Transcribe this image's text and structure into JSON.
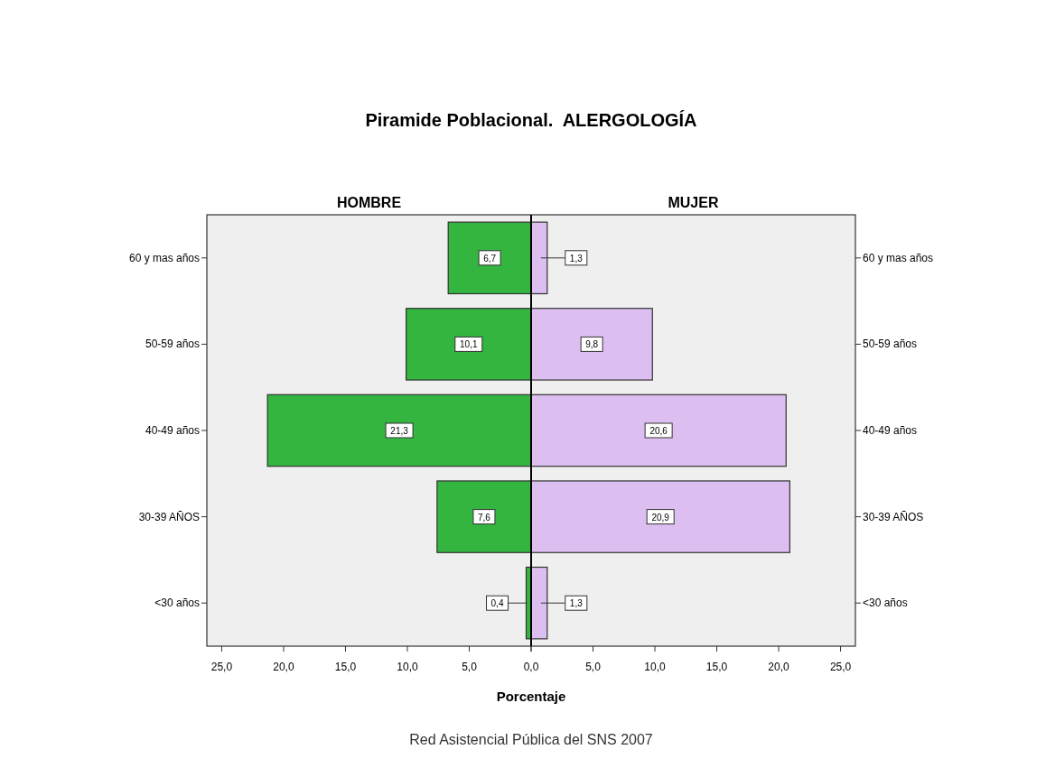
{
  "chart_data": [
    {
      "type": "bar",
      "orientation": "horizontal",
      "title": "Piramide Poblacional.  ALERGOLOGÍA",
      "subtitle": "HOMBRE",
      "xlabel": "Porcentaje",
      "annotations": [
        "Red Asistencial Pública del SNS 2007"
      ],
      "categories": [
        "60 y mas años",
        "50-59 años",
        "40-49 años",
        "30-39 AÑOS",
        "<30 años"
      ],
      "values": [
        6.7,
        10.1,
        21.3,
        7.6,
        0.4
      ],
      "value_labels": [
        "6,7",
        "10,1",
        "21,3",
        "7,6",
        "0,4"
      ],
      "color": "#33b540",
      "xlim": [
        26.2,
        0
      ],
      "xticks": [
        {
          "value": 25,
          "label": "25,0"
        },
        {
          "value": 20,
          "label": "20,0"
        },
        {
          "value": 15,
          "label": "15,0"
        },
        {
          "value": 10,
          "label": "10,0"
        },
        {
          "value": 5,
          "label": "5,0"
        },
        {
          "value": 0,
          "label": "0,0"
        }
      ]
    },
    {
      "type": "bar",
      "orientation": "horizontal",
      "subtitle": "MUJER",
      "categories": [
        "60 y mas años",
        "50-59 años",
        "40-49 años",
        "30-39 AÑOS",
        "<30 años"
      ],
      "values": [
        1.3,
        9.8,
        20.6,
        20.9,
        1.3
      ],
      "value_labels": [
        "1,3",
        "9,8",
        "20,6",
        "20,9",
        "1,3"
      ],
      "color": "#dcbef0",
      "xlim": [
        0,
        26.2
      ],
      "xticks": [
        {
          "value": 0,
          "label": null
        },
        {
          "value": 5,
          "label": "5,0"
        },
        {
          "value": 10,
          "label": "10,0"
        },
        {
          "value": 15,
          "label": "15,0"
        },
        {
          "value": 20,
          "label": "20,0"
        },
        {
          "value": 25,
          "label": "25,0"
        }
      ]
    }
  ]
}
